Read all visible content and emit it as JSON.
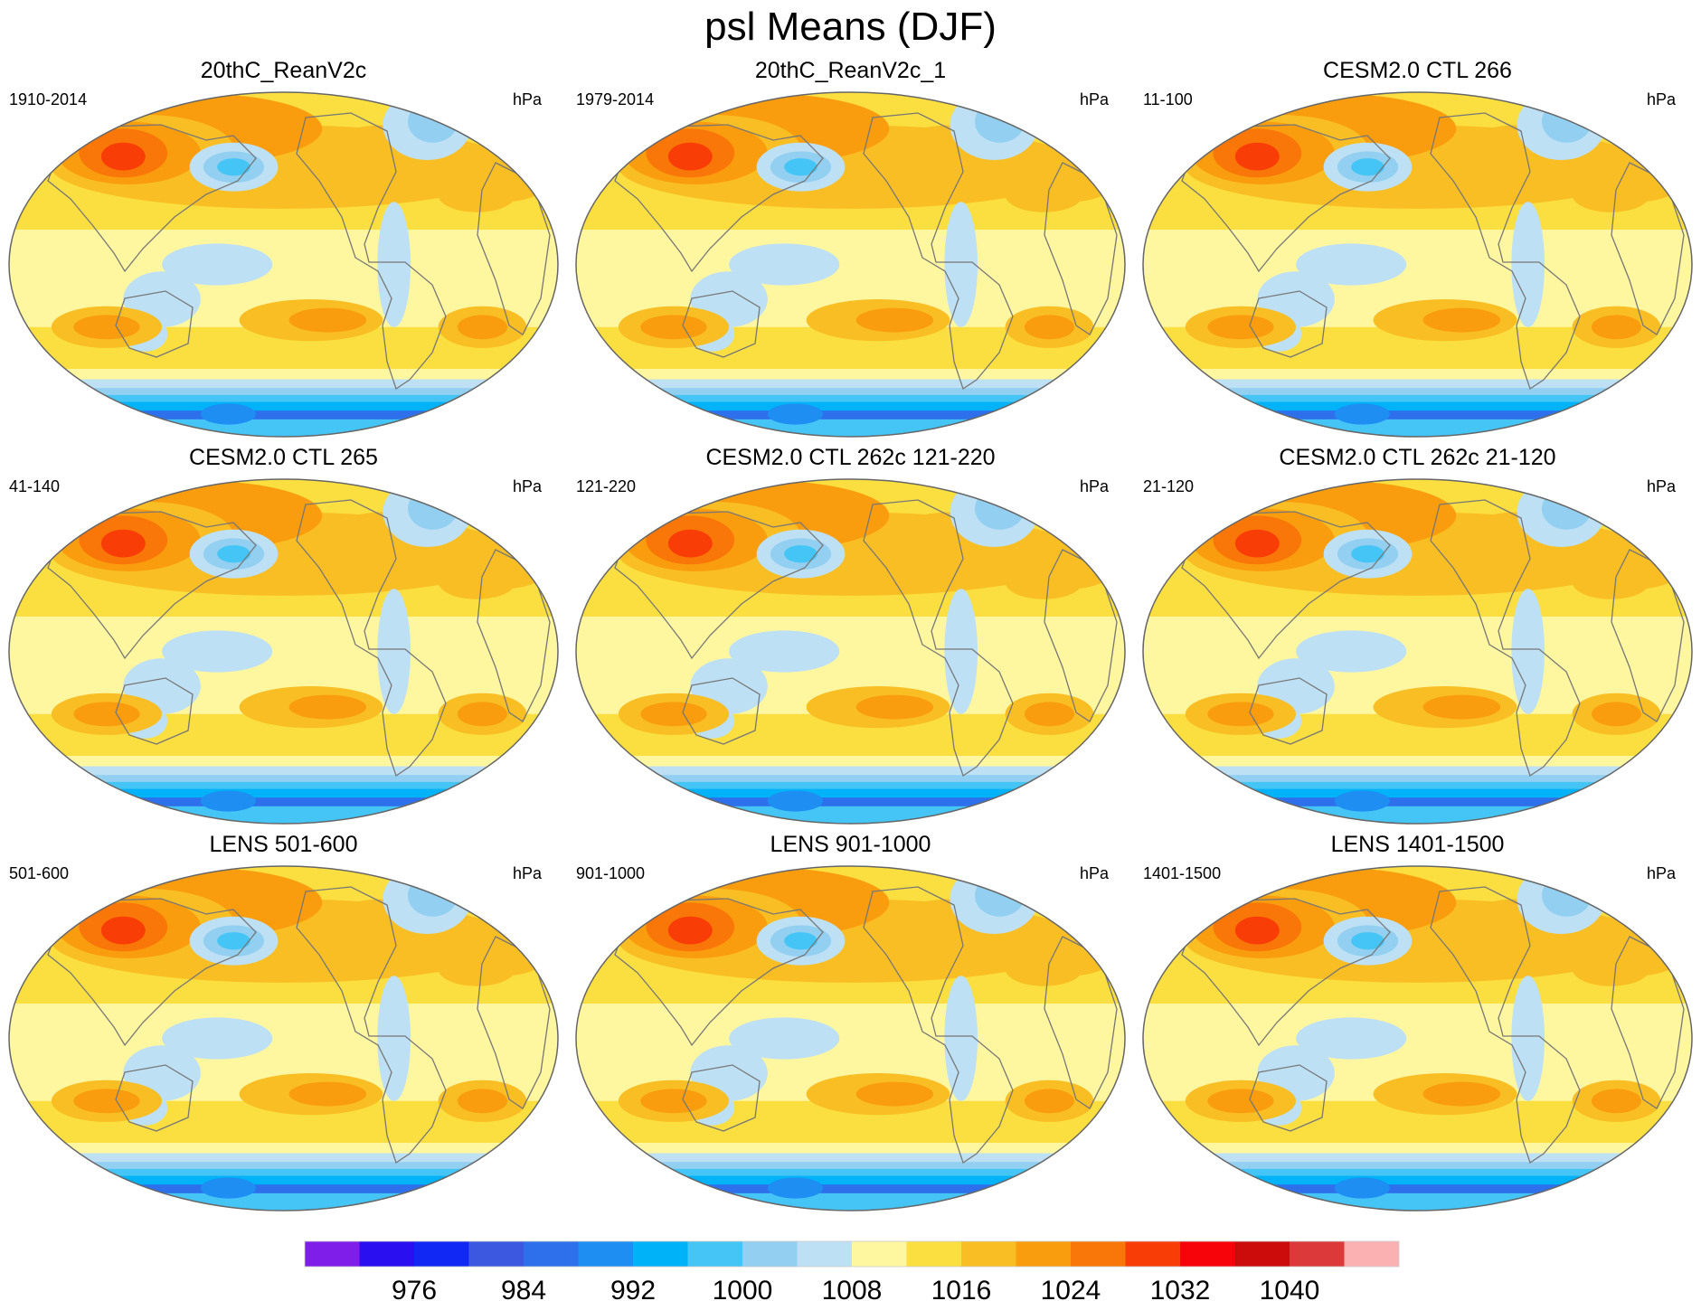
{
  "title": "psl Means (DJF)",
  "units": "hPa",
  "panels": [
    {
      "title": "20thC_ReanV2c",
      "period": "1910-2014"
    },
    {
      "title": "20thC_ReanV2c_1",
      "period": "1979-2014"
    },
    {
      "title": "CESM2.0 CTL 266",
      "period": "11-100"
    },
    {
      "title": "CESM2.0 CTL 265",
      "period": "41-140"
    },
    {
      "title": "CESM2.0 CTL 262c 121-220",
      "period": "121-220"
    },
    {
      "title": "CESM2.0 CTL 262c 21-120",
      "period": "21-120"
    },
    {
      "title": "LENS 501-600",
      "period": "501-600"
    },
    {
      "title": "LENS 901-1000",
      "period": "901-1000"
    },
    {
      "title": "LENS 1401-1500",
      "period": "1401-1500"
    }
  ],
  "colorbar": {
    "colors": [
      "#7f1ee9",
      "#2a0ff0",
      "#1128f5",
      "#3c58e0",
      "#2e70ec",
      "#1e8ef3",
      "#00b2f7",
      "#45c5f5",
      "#92cff0",
      "#bde0f5",
      "#fff6a0",
      "#fbdf40",
      "#f9be23",
      "#f99d0e",
      "#f97708",
      "#f93d07",
      "#f7040a",
      "#cc0b0b",
      "#dc3a3a",
      "#fbb1b1"
    ],
    "tick_labels": [
      "976",
      "984",
      "992",
      "1000",
      "1008",
      "1016",
      "1024",
      "1032",
      "1040"
    ]
  }
}
